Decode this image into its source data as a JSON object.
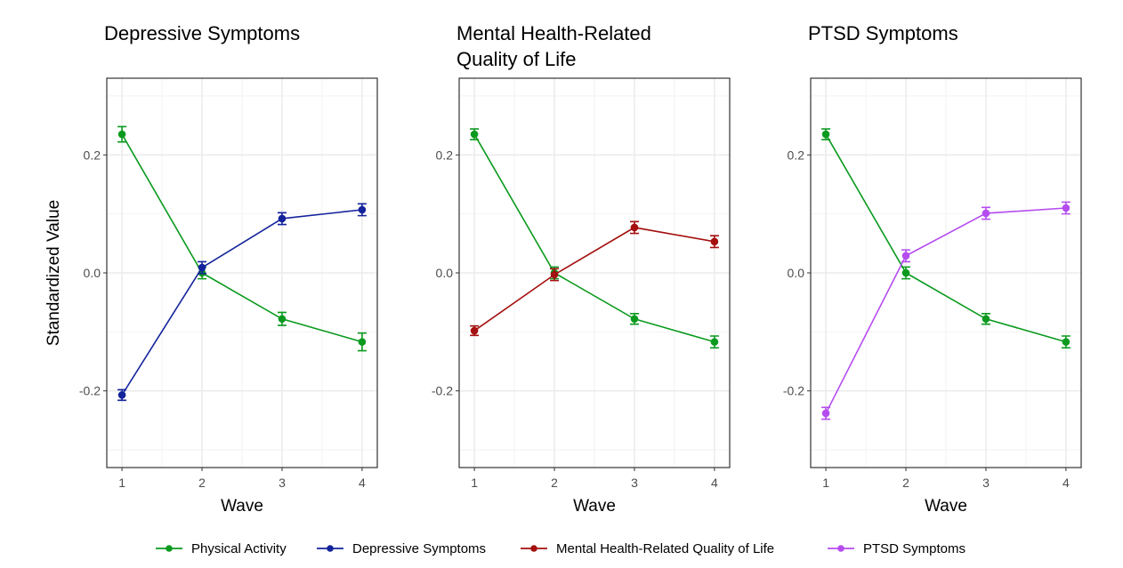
{
  "chart_data": [
    {
      "type": "line",
      "title": "Depressive Symptoms",
      "xlabel": "Wave",
      "ylabel": "Standardized Value",
      "x": [
        1,
        2,
        3,
        4
      ],
      "xlim": [
        0.81,
        4.19
      ],
      "ylim": [
        -0.33,
        0.33
      ],
      "yticks": [
        -0.2,
        0.0,
        0.2
      ],
      "ytick_labels": [
        "-0.2",
        "0.0",
        "0.2"
      ],
      "grid": true,
      "error_bars": true,
      "series": [
        {
          "name": "Physical Activity",
          "color": "#0b9a1e",
          "values": [
            0.235,
            0.0,
            -0.078,
            -0.117
          ],
          "err": [
            0.013,
            0.01,
            0.011,
            0.015
          ]
        },
        {
          "name": "Depressive Symptoms",
          "color": "#13239b",
          "values": [
            -0.207,
            0.009,
            0.092,
            0.107
          ],
          "err": [
            0.009,
            0.01,
            0.01,
            0.01
          ]
        }
      ]
    },
    {
      "type": "line",
      "title": "Mental Health-Related Quality of Life",
      "title_lines": [
        "Mental Health-Related",
        "Quality of Life"
      ],
      "xlabel": "Wave",
      "ylabel": "",
      "x": [
        1,
        2,
        3,
        4
      ],
      "xlim": [
        0.81,
        4.19
      ],
      "ylim": [
        -0.33,
        0.33
      ],
      "yticks": [
        -0.2,
        0.0,
        0.2
      ],
      "ytick_labels": [
        "-0.2",
        "0.0",
        "0.2"
      ],
      "grid": true,
      "error_bars": true,
      "series": [
        {
          "name": "Physical Activity",
          "color": "#0b9a1e",
          "values": [
            0.235,
            0.0,
            -0.078,
            -0.117
          ],
          "err": [
            0.009,
            0.01,
            0.009,
            0.01
          ]
        },
        {
          "name": "Mental Health-Related Quality of Life",
          "color": "#a3100f",
          "values": [
            -0.098,
            -0.003,
            0.077,
            0.053
          ],
          "err": [
            0.008,
            0.01,
            0.01,
            0.01
          ]
        }
      ]
    },
    {
      "type": "line",
      "title": "PTSD Symptoms",
      "xlabel": "Wave",
      "ylabel": "",
      "x": [
        1,
        2,
        3,
        4
      ],
      "xlim": [
        0.81,
        4.19
      ],
      "ylim": [
        -0.33,
        0.33
      ],
      "yticks": [
        -0.2,
        0.0,
        0.2
      ],
      "ytick_labels": [
        "-0.2",
        "0.0",
        "0.2"
      ],
      "grid": true,
      "error_bars": true,
      "series": [
        {
          "name": "Physical Activity",
          "color": "#0b9a1e",
          "values": [
            0.235,
            0.0,
            -0.078,
            -0.117
          ],
          "err": [
            0.009,
            0.01,
            0.009,
            0.01
          ]
        },
        {
          "name": "PTSD Symptoms",
          "color": "#b54cf0",
          "values": [
            -0.238,
            0.029,
            0.101,
            0.11
          ],
          "err": [
            0.01,
            0.01,
            0.01,
            0.01
          ]
        }
      ]
    }
  ],
  "legend": {
    "position": "bottom",
    "items": [
      {
        "label": "Physical Activity",
        "color": "#0b9a1e"
      },
      {
        "label": "Depressive Symptoms",
        "color": "#13239b"
      },
      {
        "label": "Mental Health-Related Quality of Life",
        "color": "#a3100f"
      },
      {
        "label": "PTSD Symptoms",
        "color": "#b54cf0"
      }
    ]
  }
}
